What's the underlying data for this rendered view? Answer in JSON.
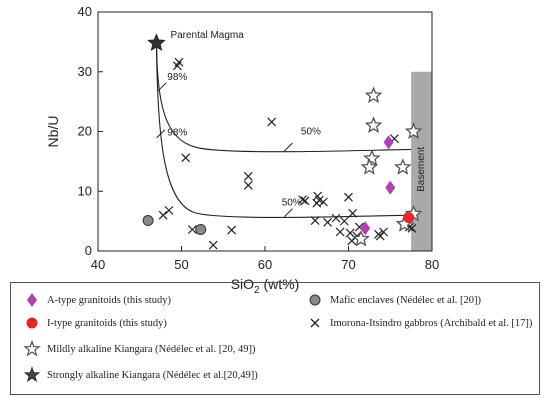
{
  "chart_data": {
    "type": "scatter",
    "xlabel": "SiO2 (wt%)",
    "xlabel_parts": {
      "main": "SiO",
      "sub": "2",
      "unit": " (wt%)"
    },
    "ylabel": "Nb/U",
    "xlim": [
      40,
      80
    ],
    "ylim": [
      0,
      40
    ],
    "xticks": [
      "40",
      "50",
      "60",
      "70",
      "80"
    ],
    "yticks": [
      "0",
      "10",
      "20",
      "30",
      "40"
    ],
    "annotations": {
      "parental": "Parental Magma",
      "p98_upper": "98%",
      "p98_lower": "98%",
      "p50_upper": "50%",
      "p50_lower": "50%",
      "basement": "Basement"
    },
    "basement_band": {
      "x": [
        77.5,
        80
      ],
      "y": [
        0,
        30
      ]
    },
    "parental_magma": {
      "x": 47,
      "y": 34.8
    },
    "mixing_curves": [
      {
        "end": [
          77.5,
          17
        ]
      },
      {
        "end": [
          77.5,
          6
        ]
      }
    ],
    "series": [
      {
        "name": "A-type granitoids (this study)",
        "marker": "diamond",
        "color": "#b040b0",
        "points": [
          [
            72.0,
            3.8
          ],
          [
            74.8,
            18.2
          ],
          [
            75.0,
            10.6
          ]
        ]
      },
      {
        "name": "I-type granitoids (this study)",
        "marker": "circle",
        "color": "#e8252a",
        "points": [
          [
            77.2,
            5.6
          ]
        ]
      },
      {
        "name": "Mildly alkaline Kiangara (Nédélec et al. [20, 49])",
        "marker": "star-open",
        "color": "#555555",
        "points": [
          [
            73.0,
            26.0
          ],
          [
            73.0,
            21.0
          ],
          [
            72.8,
            15.5
          ],
          [
            72.5,
            14.0
          ],
          [
            76.5,
            14.0
          ],
          [
            77.8,
            20.0
          ],
          [
            77.8,
            6.2
          ],
          [
            76.7,
            4.5
          ],
          [
            71.5,
            2.0
          ]
        ]
      },
      {
        "name": "Strongly alkaline Kiangara (Nédélec et al.[20,49])",
        "marker": "star-filled",
        "color": "#222222",
        "points": [
          [
            47.0,
            34.8
          ]
        ]
      },
      {
        "name": "Mafic enclaves (Nédélec et al. [20])",
        "marker": "circle-grey",
        "color": "#8a8a8a",
        "points": [
          [
            46.0,
            5.1
          ],
          [
            52.3,
            3.6
          ]
        ]
      },
      {
        "name": "Imorona-Itsindro gabbros (Archibald et al. [17])",
        "marker": "cross",
        "color": "#222222",
        "points": [
          [
            49.7,
            31.6
          ],
          [
            49.5,
            31.0
          ],
          [
            47.8,
            6.0
          ],
          [
            48.5,
            6.8
          ],
          [
            50.5,
            15.6
          ],
          [
            51.3,
            3.6
          ],
          [
            53.8,
            1.0
          ],
          [
            56.0,
            3.5
          ],
          [
            58.0,
            12.5
          ],
          [
            58.0,
            11.0
          ],
          [
            60.8,
            21.6
          ],
          [
            64.5,
            8.6
          ],
          [
            64.8,
            8.4
          ],
          [
            66.0,
            5.1
          ],
          [
            66.3,
            9.2
          ],
          [
            66.5,
            8.5
          ],
          [
            66.2,
            8.0
          ],
          [
            67.0,
            8.2
          ],
          [
            67.5,
            4.8
          ],
          [
            68.5,
            5.5
          ],
          [
            69.0,
            3.2
          ],
          [
            69.5,
            5.0
          ],
          [
            70.0,
            9.0
          ],
          [
            70.2,
            3.0
          ],
          [
            70.4,
            1.7
          ],
          [
            70.5,
            6.3
          ],
          [
            71.0,
            2.5
          ],
          [
            71.3,
            4.0
          ],
          [
            73.6,
            2.8
          ],
          [
            73.8,
            2.5
          ],
          [
            74.2,
            3.2
          ],
          [
            75.5,
            18.8
          ],
          [
            77.3,
            4.0
          ],
          [
            77.6,
            3.8
          ]
        ]
      }
    ]
  }
}
